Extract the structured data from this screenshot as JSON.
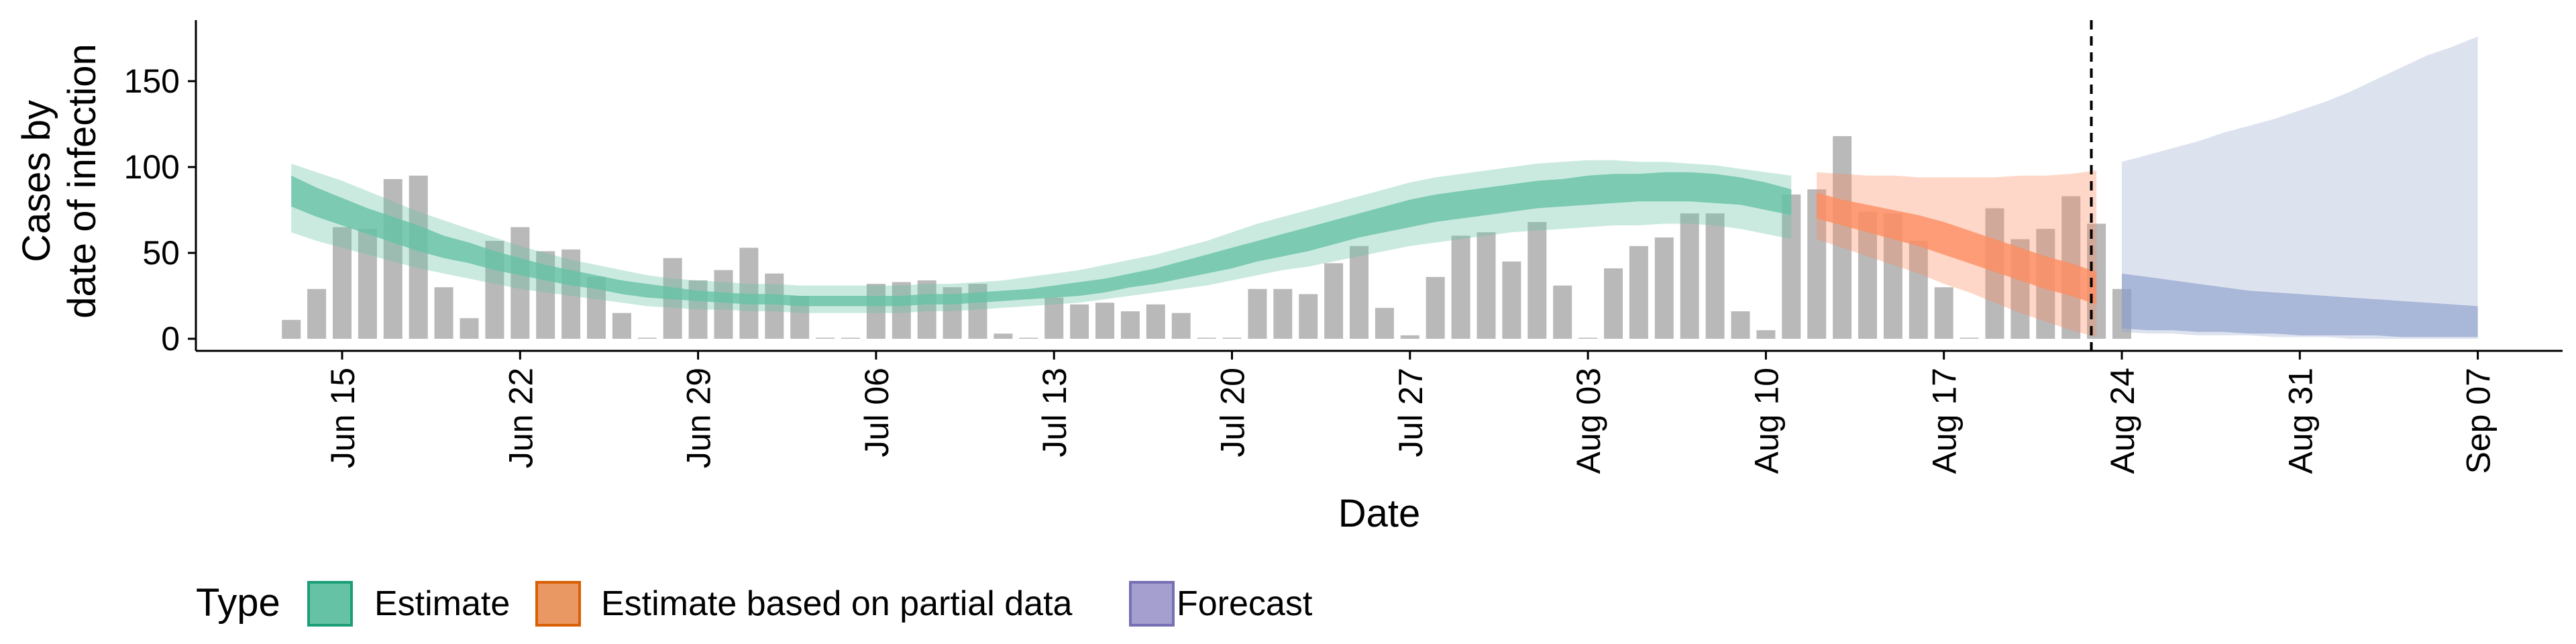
{
  "chart_data": {
    "type": "bar",
    "title": "",
    "xlabel": "Date",
    "ylabel": [
      "Cases by",
      "date of infection"
    ],
    "ylim": [
      -8,
      185
    ],
    "yticks": [
      0,
      50,
      100,
      150
    ],
    "grid": false,
    "x_start": "2020-06-13",
    "x_end": "2020-09-10",
    "xticks": [
      {
        "label": "Jun 15",
        "day": 2
      },
      {
        "label": "Jun 22",
        "day": 9
      },
      {
        "label": "Jun 29",
        "day": 16
      },
      {
        "label": "Jul 06",
        "day": 23
      },
      {
        "label": "Jul 13",
        "day": 30
      },
      {
        "label": "Jul 20",
        "day": 37
      },
      {
        "label": "Jul 27",
        "day": 44
      },
      {
        "label": "Aug 03",
        "day": 51
      },
      {
        "label": "Aug 10",
        "day": 58
      },
      {
        "label": "Aug 17",
        "day": 65
      },
      {
        "label": "Aug 24",
        "day": 72
      },
      {
        "label": "Aug 31",
        "day": 79
      },
      {
        "label": "Sep 07",
        "day": 86
      }
    ],
    "vline_day": 70.8,
    "bars": {
      "start_day": 0,
      "values": [
        11,
        29,
        65,
        64,
        93,
        95,
        30,
        12,
        57,
        65,
        51,
        52,
        36,
        15,
        0,
        47,
        34,
        40,
        53,
        38,
        25,
        0,
        0,
        32,
        33,
        34,
        30,
        32,
        3,
        0,
        24,
        20,
        21,
        16,
        20,
        15,
        0,
        0,
        29,
        29,
        26,
        44,
        54,
        18,
        2,
        36,
        60,
        62,
        45,
        68,
        31,
        0,
        41,
        54,
        59,
        73,
        73,
        16,
        5,
        84,
        87,
        118,
        74,
        73,
        57,
        30,
        0,
        76,
        58,
        64,
        83,
        67,
        29
      ]
    },
    "series": [
      {
        "name": "Estimate",
        "color": "#66c2a5",
        "stroke": "#1b9e77",
        "start_day": 0,
        "median": [
          86,
          80,
          74,
          69,
          64,
          59,
          54,
          50,
          46,
          42,
          39,
          36,
          33,
          30,
          28,
          26,
          25,
          24,
          23,
          23,
          22,
          22,
          22,
          22,
          22,
          23,
          23,
          24,
          25,
          26,
          27,
          29,
          31,
          34,
          37,
          40,
          43,
          47,
          51,
          54,
          58,
          62,
          66,
          69,
          73,
          76,
          78,
          80,
          82,
          84,
          85,
          87,
          88,
          88,
          89,
          89,
          88,
          86,
          83,
          79
        ],
        "inner_lo": [
          77,
          71,
          66,
          61,
          56,
          51,
          47,
          44,
          40,
          37,
          34,
          31,
          29,
          26,
          24,
          23,
          22,
          21,
          20,
          20,
          19,
          19,
          19,
          19,
          19,
          20,
          20,
          21,
          22,
          23,
          24,
          25,
          27,
          30,
          32,
          35,
          38,
          41,
          45,
          48,
          51,
          55,
          59,
          62,
          65,
          68,
          70,
          72,
          74,
          76,
          77,
          78,
          79,
          80,
          80,
          80,
          79,
          78,
          75,
          72
        ],
        "inner_hi": [
          95,
          88,
          82,
          76,
          71,
          66,
          60,
          56,
          51,
          47,
          43,
          40,
          37,
          34,
          32,
          30,
          28,
          27,
          26,
          26,
          25,
          25,
          25,
          25,
          25,
          26,
          26,
          27,
          28,
          29,
          31,
          33,
          35,
          38,
          41,
          45,
          49,
          53,
          57,
          61,
          65,
          69,
          73,
          77,
          81,
          84,
          86,
          88,
          90,
          92,
          93,
          95,
          96,
          96,
          97,
          97,
          96,
          94,
          91,
          87
        ],
        "outer_lo": [
          62,
          57,
          53,
          49,
          45,
          41,
          38,
          35,
          32,
          29,
          27,
          25,
          23,
          21,
          19,
          18,
          17,
          17,
          16,
          16,
          15,
          15,
          15,
          15,
          15,
          16,
          16,
          17,
          18,
          19,
          20,
          21,
          23,
          25,
          27,
          29,
          31,
          34,
          37,
          40,
          42,
          45,
          48,
          51,
          54,
          56,
          58,
          60,
          62,
          63,
          64,
          65,
          66,
          66,
          67,
          67,
          66,
          64,
          61,
          58
        ],
        "outer_hi": [
          102,
          97,
          92,
          86,
          80,
          74,
          69,
          64,
          59,
          54,
          50,
          46,
          43,
          40,
          37,
          35,
          34,
          33,
          32,
          32,
          31,
          31,
          31,
          31,
          31,
          32,
          32,
          33,
          34,
          36,
          38,
          40,
          43,
          46,
          49,
          53,
          57,
          62,
          67,
          71,
          75,
          79,
          83,
          87,
          91,
          94,
          96,
          98,
          100,
          102,
          103,
          104,
          104,
          103,
          103,
          102,
          101,
          99,
          97,
          95
        ]
      },
      {
        "name": "Estimate based on partial data",
        "color": "#fc8d62",
        "stroke": "#d95f02",
        "start_day": 60,
        "median": [
          77,
          73,
          70,
          67,
          63,
          58,
          53,
          48,
          43,
          38,
          34,
          29
        ],
        "inner_lo": [
          70,
          66,
          62,
          58,
          54,
          49,
          44,
          39,
          34,
          29,
          25,
          20
        ],
        "inner_hi": [
          85,
          81,
          78,
          75,
          72,
          68,
          63,
          58,
          53,
          48,
          44,
          39
        ],
        "outer_lo": [
          58,
          53,
          48,
          43,
          38,
          32,
          27,
          21,
          15,
          10,
          5,
          1
        ],
        "outer_hi": [
          97,
          96,
          95,
          95,
          94,
          94,
          94,
          94,
          95,
          95,
          96,
          98
        ]
      },
      {
        "name": "Forecast",
        "color": "#8da0cb",
        "stroke": "#7570b3",
        "start_day": 72,
        "median": [],
        "inner_lo": [
          6,
          5,
          5,
          4,
          4,
          3,
          3,
          2,
          2,
          2,
          2,
          1,
          1,
          1,
          1
        ],
        "inner_hi": [
          38,
          36,
          34,
          32,
          30,
          28,
          27,
          26,
          25,
          24,
          23,
          22,
          21,
          20,
          19
        ],
        "outer_lo": [
          4,
          3,
          3,
          2,
          2,
          2,
          1,
          1,
          1,
          0,
          0,
          0,
          0,
          0,
          0
        ],
        "outer_hi": [
          103,
          107,
          111,
          115,
          120,
          124,
          128,
          133,
          138,
          144,
          151,
          158,
          165,
          170,
          176
        ]
      }
    ],
    "legend": {
      "position": "bottom-left",
      "title": "Type",
      "entries": [
        "Estimate",
        "Estimate based on partial data",
        "Forecast"
      ]
    }
  }
}
